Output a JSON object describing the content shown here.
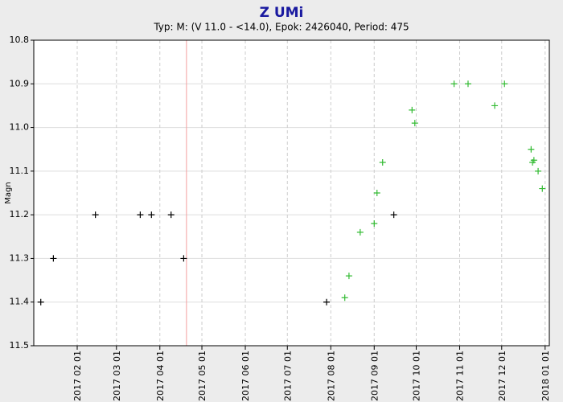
{
  "chart_data": {
    "type": "scatter",
    "title": "Z UMi",
    "subtitle": "Typ: M: (V 11.0 - <14.0), Epok: 2426040, Period: 475",
    "y_label": "Magn",
    "y_inverted": true,
    "grid": true,
    "xlim": [
      "2017-01-01",
      "2018-01-04"
    ],
    "xticks": [
      {
        "value": "2017-02-01",
        "label": "2017 02 01"
      },
      {
        "value": "2017-03-01",
        "label": "2017 03 01"
      },
      {
        "value": "2017-04-01",
        "label": "2017 04 01"
      },
      {
        "value": "2017-05-01",
        "label": "2017 05 01"
      },
      {
        "value": "2017-06-01",
        "label": "2017 06 01"
      },
      {
        "value": "2017-07-01",
        "label": "2017 07 01"
      },
      {
        "value": "2017-08-01",
        "label": "2017 08 01"
      },
      {
        "value": "2017-09-01",
        "label": "2017 09 01"
      },
      {
        "value": "2017-10-01",
        "label": "2017 10 01"
      },
      {
        "value": "2017-11-01",
        "label": "2017 11 01"
      },
      {
        "value": "2017-12-01",
        "label": "2017 12 01"
      },
      {
        "value": "2018-01-01",
        "label": "2018 01 01"
      }
    ],
    "ylim": [
      10.8,
      11.5
    ],
    "yticks": [
      10.8,
      10.9,
      {
        "value": 11,
        "label": "11.0"
      },
      11.1,
      11.2,
      11.3,
      11.4,
      11.5
    ],
    "vline": {
      "x": "2017-04-20",
      "color": "#f4a0a0"
    },
    "series": [
      {
        "color": "#000000",
        "x": [
          "2017-01-06",
          "2017-01-15",
          "2017-02-14",
          "2017-03-18",
          "2017-03-26",
          "2017-04-09",
          "2017-04-18",
          "2017-07-29",
          "2017-09-15"
        ],
        "values": [
          11.4,
          11.3,
          11.2,
          11.2,
          11.2,
          11.2,
          11.3,
          11.4,
          11.2
        ]
      },
      {
        "color": "#33bb33",
        "x": [
          "2017-08-11",
          "2017-08-14",
          "2017-08-22",
          "2017-09-01",
          "2017-09-03",
          "2017-09-07",
          "2017-09-28",
          "2017-09-30",
          "2017-10-28",
          "2017-11-07",
          "2017-11-26",
          "2017-12-03",
          "2017-12-22",
          "2017-12-23",
          "2017-12-24",
          "2017-12-27",
          "2017-12-30"
        ],
        "values": [
          11.39,
          11.34,
          11.24,
          11.22,
          11.15,
          11.08,
          10.96,
          10.99,
          10.9,
          10.9,
          10.95,
          10.9,
          11.05,
          11.08,
          11.075,
          11.1,
          11.14
        ]
      }
    ]
  }
}
